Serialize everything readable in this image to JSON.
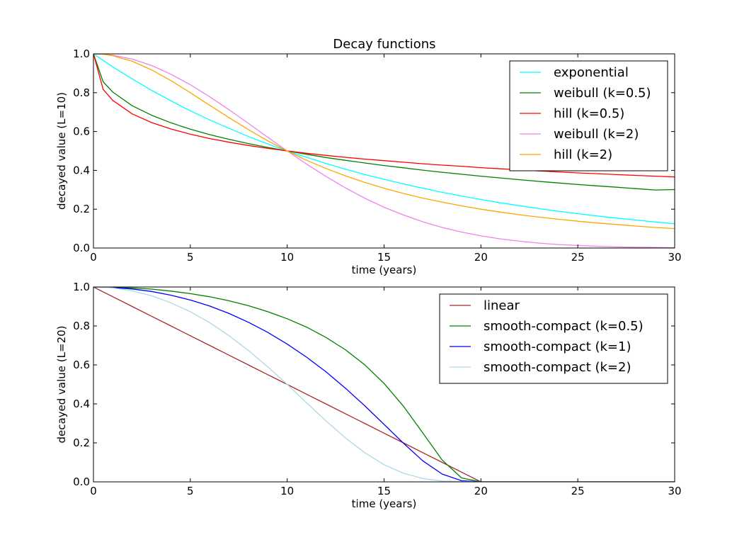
{
  "chart_data": [
    {
      "type": "line",
      "title": "Decay functions",
      "xlabel": "time (years)",
      "ylabel": "decayed value (L=10)",
      "xlim": [
        0,
        30
      ],
      "ylim": [
        0,
        1
      ],
      "xticks": [
        0,
        5,
        10,
        15,
        20,
        25,
        30
      ],
      "yticks": [
        0.0,
        0.2,
        0.4,
        0.6,
        0.8,
        1.0
      ],
      "xtick_labels": [
        "0",
        "5",
        "10",
        "15",
        "20",
        "25",
        "30"
      ],
      "ytick_labels": [
        "0.0",
        "0.2",
        "0.4",
        "0.6",
        "0.8",
        "1.0"
      ],
      "grid": false,
      "legend_position": "top-right",
      "x": [
        0,
        0.5,
        1,
        2,
        3,
        4,
        5,
        6,
        7,
        8,
        9,
        10,
        11,
        12,
        13,
        14,
        15,
        16,
        17,
        18,
        19,
        20,
        21,
        22,
        23,
        24,
        25,
        26,
        27,
        28,
        29,
        30
      ],
      "series": [
        {
          "name": "exponential",
          "color": "#00ffff",
          "values": [
            1.0,
            0.966,
            0.933,
            0.871,
            0.812,
            0.758,
            0.707,
            0.66,
            0.616,
            0.574,
            0.536,
            0.5,
            0.467,
            0.435,
            0.406,
            0.379,
            0.354,
            0.33,
            0.308,
            0.287,
            0.268,
            0.25,
            0.233,
            0.218,
            0.203,
            0.189,
            0.177,
            0.165,
            0.154,
            0.144,
            0.134,
            0.125
          ]
        },
        {
          "name": "weibull (k=0.5)",
          "color": "#008000",
          "values": [
            1.0,
            0.856,
            0.803,
            0.733,
            0.684,
            0.645,
            0.612,
            0.584,
            0.56,
            0.538,
            0.518,
            0.5,
            0.483,
            0.466,
            0.452,
            0.438,
            0.425,
            0.413,
            0.401,
            0.39,
            0.38,
            0.37,
            0.361,
            0.352,
            0.343,
            0.335,
            0.327,
            0.32,
            0.313,
            0.306,
            0.299,
            0.301
          ]
        },
        {
          "name": "hill (k=0.5)",
          "color": "#ff0000",
          "values": [
            1.0,
            0.817,
            0.76,
            0.691,
            0.646,
            0.613,
            0.586,
            0.564,
            0.545,
            0.528,
            0.513,
            0.5,
            0.488,
            0.477,
            0.467,
            0.458,
            0.45,
            0.442,
            0.434,
            0.427,
            0.421,
            0.414,
            0.408,
            0.403,
            0.397,
            0.392,
            0.387,
            0.383,
            0.378,
            0.374,
            0.37,
            0.366
          ]
        },
        {
          "name": "weibull (k=2)",
          "color": "#ee82ee",
          "values": [
            1.0,
            0.998,
            0.993,
            0.973,
            0.94,
            0.895,
            0.841,
            0.779,
            0.712,
            0.642,
            0.57,
            0.5,
            0.432,
            0.369,
            0.31,
            0.257,
            0.21,
            0.17,
            0.135,
            0.106,
            0.082,
            0.0625,
            0.047,
            0.035,
            0.025,
            0.018,
            0.013,
            0.009,
            0.006,
            0.004,
            0.003,
            0.002
          ]
        },
        {
          "name": "hill (k=2)",
          "color": "#ffa500",
          "values": [
            1.0,
            0.998,
            0.99,
            0.962,
            0.917,
            0.862,
            0.8,
            0.735,
            0.671,
            0.61,
            0.552,
            0.5,
            0.452,
            0.41,
            0.372,
            0.338,
            0.308,
            0.281,
            0.257,
            0.236,
            0.217,
            0.2,
            0.185,
            0.171,
            0.159,
            0.148,
            0.138,
            0.129,
            0.121,
            0.113,
            0.106,
            0.1
          ]
        }
      ]
    },
    {
      "type": "line",
      "title": "",
      "xlabel": "time (years)",
      "ylabel": "decayed value (L=20)",
      "xlim": [
        0,
        30
      ],
      "ylim": [
        0,
        1
      ],
      "xticks": [
        0,
        5,
        10,
        15,
        20,
        25,
        30
      ],
      "yticks": [
        0.0,
        0.2,
        0.4,
        0.6,
        0.8,
        1.0
      ],
      "xtick_labels": [
        "0",
        "5",
        "10",
        "15",
        "20",
        "25",
        "30"
      ],
      "ytick_labels": [
        "0.0",
        "0.2",
        "0.4",
        "0.6",
        "0.8",
        "1.0"
      ],
      "grid": false,
      "legend_position": "top-right",
      "x": [
        0,
        1,
        2,
        3,
        4,
        5,
        6,
        7,
        8,
        9,
        10,
        11,
        12,
        13,
        14,
        15,
        16,
        17,
        18,
        19,
        20,
        21,
        22,
        23,
        24,
        25,
        26,
        27,
        28,
        29,
        30
      ],
      "series": [
        {
          "name": "linear",
          "color": "#a52a2a",
          "values": [
            1.0,
            0.95,
            0.9,
            0.85,
            0.8,
            0.75,
            0.7,
            0.65,
            0.6,
            0.55,
            0.5,
            0.45,
            0.4,
            0.35,
            0.3,
            0.25,
            0.2,
            0.15,
            0.1,
            0.05,
            0.0,
            0.0,
            0.0,
            0.0,
            0.0,
            0.0,
            0.0,
            0.0,
            0.0,
            0.0,
            0.0
          ]
        },
        {
          "name": "smooth-compact (k=0.5)",
          "color": "#008000",
          "values": [
            1.0,
            1.0,
            0.995,
            0.989,
            0.979,
            0.966,
            0.95,
            0.929,
            0.904,
            0.873,
            0.837,
            0.794,
            0.741,
            0.678,
            0.601,
            0.505,
            0.388,
            0.251,
            0.112,
            0.02,
            0.0,
            0.0,
            0.0,
            0.0,
            0.0,
            0.0,
            0.0,
            0.0,
            0.0,
            0.0,
            0.0
          ]
        },
        {
          "name": "smooth-compact (k=1)",
          "color": "#0000ff",
          "values": [
            1.0,
            0.997,
            0.99,
            0.977,
            0.958,
            0.933,
            0.902,
            0.864,
            0.819,
            0.767,
            0.707,
            0.64,
            0.565,
            0.481,
            0.391,
            0.295,
            0.198,
            0.108,
            0.04,
            0.006,
            0.0,
            0.0,
            0.0,
            0.0,
            0.0,
            0.0,
            0.0,
            0.0,
            0.0,
            0.0,
            0.0
          ]
        },
        {
          "name": "smooth-compact (k=2)",
          "color": "#add8e6",
          "values": [
            1.0,
            0.995,
            0.98,
            0.955,
            0.919,
            0.873,
            0.817,
            0.75,
            0.674,
            0.59,
            0.5,
            0.406,
            0.313,
            0.226,
            0.15,
            0.088,
            0.044,
            0.017,
            0.004,
            0.001,
            0.0,
            0.0,
            0.0,
            0.0,
            0.0,
            0.0,
            0.0,
            0.0,
            0.0,
            0.0,
            0.0
          ]
        }
      ]
    }
  ]
}
